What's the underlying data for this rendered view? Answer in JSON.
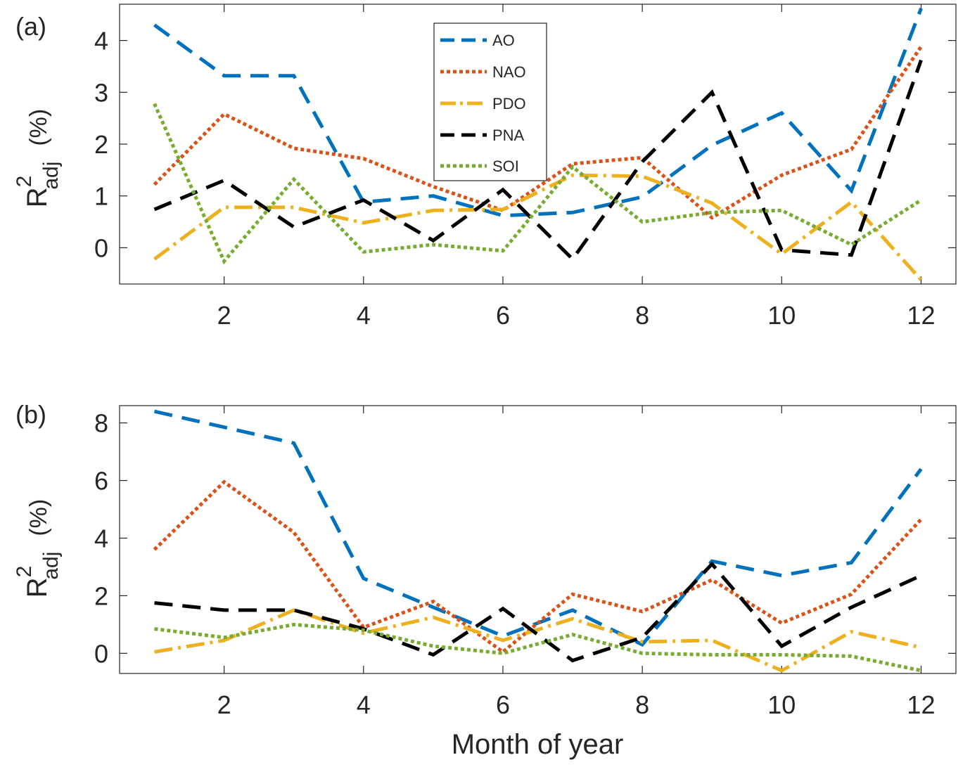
{
  "colors": {
    "AO": "#0072BD",
    "NAO": "#D95319",
    "PDO": "#EDB120",
    "PNA": "#000000",
    "SOI": "#77AC30"
  },
  "chart_data": [
    {
      "type": "line",
      "panel_label": "(a)",
      "xlabel": "",
      "ylabel_main": "R",
      "ylabel_sup": "2",
      "ylabel_sub": "adj",
      "ylabel_unit": "(%)",
      "xlim": [
        0.5,
        12.5
      ],
      "ylim": [
        -0.7,
        4.7
      ],
      "xticks": [
        2,
        4,
        6,
        8,
        10,
        12
      ],
      "yticks": [
        0,
        1,
        2,
        3,
        4
      ],
      "legend_position": "top-center",
      "x": [
        1,
        2,
        3,
        4,
        5,
        6,
        7,
        8,
        9,
        10,
        11,
        12
      ],
      "series": [
        {
          "name": "AO",
          "style": "dashed",
          "values": [
            4.3,
            3.32,
            3.32,
            0.88,
            1.0,
            0.62,
            0.68,
            0.98,
            1.98,
            2.6,
            1.1,
            4.62
          ]
        },
        {
          "name": "NAO",
          "style": "dotted",
          "values": [
            1.22,
            2.58,
            1.92,
            1.72,
            1.18,
            0.72,
            1.62,
            1.74,
            0.58,
            1.4,
            1.9,
            3.88
          ]
        },
        {
          "name": "PDO",
          "style": "dashdot",
          "values": [
            -0.22,
            0.78,
            0.78,
            0.48,
            0.72,
            0.74,
            1.4,
            1.38,
            0.86,
            -0.12,
            0.88,
            -0.62
          ]
        },
        {
          "name": "PNA",
          "style": "dashed",
          "values": [
            0.74,
            1.3,
            0.4,
            0.92,
            0.14,
            1.12,
            -0.22,
            1.66,
            3.0,
            -0.04,
            -0.14,
            3.62
          ]
        },
        {
          "name": "SOI",
          "style": "dotted",
          "values": [
            2.78,
            -0.26,
            1.32,
            -0.08,
            0.06,
            -0.06,
            1.56,
            0.5,
            0.68,
            0.72,
            0.06,
            0.92
          ]
        }
      ]
    },
    {
      "type": "line",
      "panel_label": "(b)",
      "xlabel": "Month of year",
      "ylabel_main": "R",
      "ylabel_sup": "2",
      "ylabel_sub": "adj",
      "ylabel_unit": "(%)",
      "xlim": [
        0.5,
        12.5
      ],
      "ylim": [
        -0.7,
        8.6
      ],
      "xticks": [
        2,
        4,
        6,
        8,
        10,
        12
      ],
      "yticks": [
        0,
        2,
        4,
        6,
        8
      ],
      "x": [
        1,
        2,
        3,
        4,
        5,
        6,
        7,
        8,
        9,
        10,
        11,
        12
      ],
      "series": [
        {
          "name": "AO",
          "style": "dashed",
          "values": [
            8.4,
            7.85,
            7.3,
            2.6,
            1.6,
            0.6,
            1.5,
            0.3,
            3.2,
            2.7,
            3.15,
            6.4
          ]
        },
        {
          "name": "NAO",
          "style": "dotted",
          "values": [
            3.6,
            5.95,
            4.2,
            0.9,
            1.8,
            0.05,
            2.05,
            1.45,
            2.55,
            1.05,
            2.05,
            4.65
          ]
        },
        {
          "name": "PDO",
          "style": "dashdot",
          "values": [
            0.05,
            0.45,
            1.5,
            0.7,
            1.25,
            0.45,
            1.2,
            0.4,
            0.45,
            -0.6,
            0.75,
            0.2
          ]
        },
        {
          "name": "PNA",
          "style": "dashed",
          "values": [
            1.75,
            1.5,
            1.5,
            0.85,
            -0.05,
            1.55,
            -0.25,
            0.55,
            3.1,
            0.25,
            1.6,
            2.7
          ]
        },
        {
          "name": "SOI",
          "style": "dotted",
          "values": [
            0.85,
            0.55,
            1.0,
            0.8,
            0.25,
            0.0,
            0.65,
            0.0,
            -0.05,
            -0.05,
            -0.1,
            -0.6
          ]
        }
      ]
    }
  ]
}
